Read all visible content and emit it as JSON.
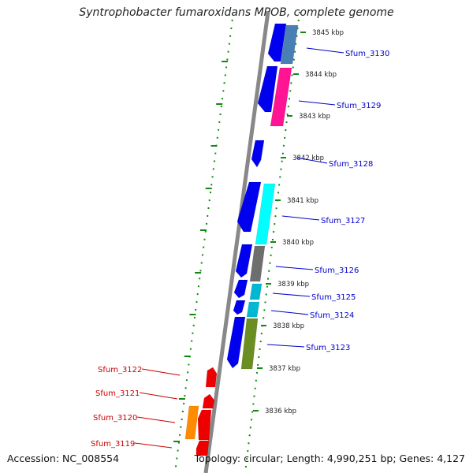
{
  "title": "Syntrophobacter fumaroxidans MPOB, complete genome",
  "footer": {
    "accession": "Accession: NC_008554",
    "summary": "Topology: circular; Length: 4,990,251 bp; Genes: 4,127"
  },
  "colors": {
    "forward_gene": "#0000ee",
    "reverse_gene": "#ee0000",
    "backbone": "#888888",
    "dotted_track": "#118811",
    "label_blue": "#0000cc",
    "label_red": "#cc0000"
  },
  "ruler_labels": [
    "3845 kbp",
    "3844 kbp",
    "3843 kbp",
    "3842 kbp",
    "3841 kbp",
    "3840 kbp",
    "3839 kbp",
    "3838 kbp",
    "3837 kbp",
    "3836 kbp"
  ],
  "right_gene_labels": [
    "Sfum_3130",
    "Sfum_3129",
    "Sfum_3128",
    "Sfum_3127",
    "Sfum_3126",
    "Sfum_3125",
    "Sfum_3124",
    "Sfum_3123"
  ],
  "left_gene_labels": [
    "Sfum_3122",
    "Sfum_3121",
    "Sfum_3120",
    "Sfum_3119"
  ],
  "cog_colors": [
    "#4a7fb5",
    "#ff1493",
    "#00ffff",
    "#6e6e6e",
    "#00b8d4",
    "#00b8d4",
    "#6b8e23",
    "#ff8c00"
  ]
}
